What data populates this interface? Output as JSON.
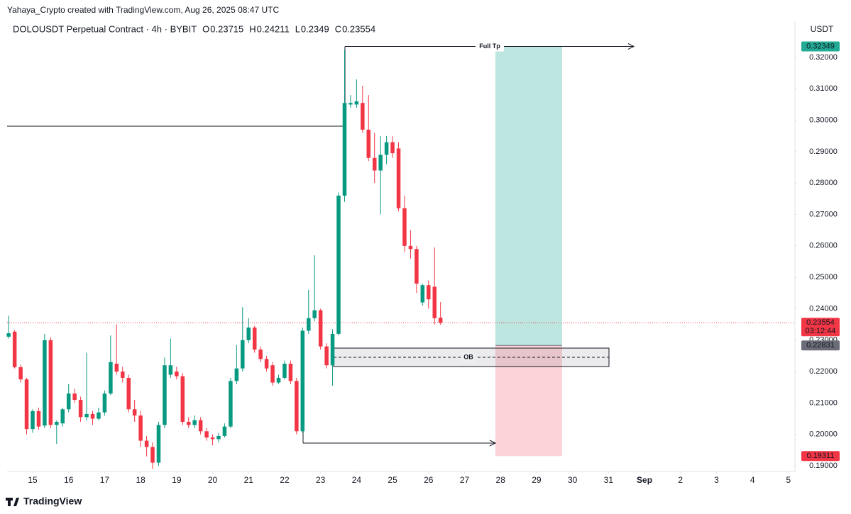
{
  "chart_data": {
    "type": "candlestick",
    "watermark": "Yahaya_Crypto created with TradingView.com, Aug 26, 2025 08:47 UTC",
    "symbol": "DOLOUSDT Perpetual Contract · 4h · BYBIT",
    "ohlc_labels": [
      "O",
      "H",
      "L",
      "C"
    ],
    "currency": "USDT",
    "countdown": "03:12:44",
    "brand": "TradingView",
    "up_color": "#089981",
    "down_color": "#f23645",
    "x": [
      14.333,
      14.5,
      14.667,
      14.833,
      15,
      15.167,
      15.333,
      15.5,
      15.667,
      15.833,
      16,
      16.167,
      16.333,
      16.5,
      16.667,
      16.833,
      17,
      17.167,
      17.333,
      17.5,
      17.667,
      17.833,
      18,
      18.167,
      18.333,
      18.5,
      18.667,
      18.833,
      19,
      19.167,
      19.333,
      19.5,
      19.667,
      19.833,
      20,
      20.167,
      20.333,
      20.5,
      20.667,
      20.833,
      21,
      21.167,
      21.333,
      21.5,
      21.667,
      21.833,
      22,
      22.167,
      22.333,
      22.5,
      22.667,
      22.833,
      23,
      23.167,
      23.333,
      23.5,
      23.667,
      23.833,
      24,
      24.167,
      24.333,
      24.5,
      24.667,
      24.833,
      25,
      25.167,
      25.333,
      25.5,
      25.667,
      25.833,
      26,
      26.167,
      26.333
    ],
    "ohlc": [
      [
        0.2311,
        0.2378,
        0.2305,
        0.2322
      ],
      [
        0.2327,
        0.2332,
        0.221,
        0.2214
      ],
      [
        0.2214,
        0.2222,
        0.2165,
        0.2175
      ],
      [
        0.2175,
        0.218,
        0.2,
        0.2017
      ],
      [
        0.2017,
        0.208,
        0.2005,
        0.2074
      ],
      [
        0.2074,
        0.2085,
        0.2015,
        0.2025
      ],
      [
        0.2028,
        0.232,
        0.202,
        0.23
      ],
      [
        0.23,
        0.231,
        0.202,
        0.203
      ],
      [
        0.203,
        0.2045,
        0.197,
        0.204
      ],
      [
        0.2035,
        0.2085,
        0.2025,
        0.208
      ],
      [
        0.208,
        0.216,
        0.207,
        0.213
      ],
      [
        0.213,
        0.2145,
        0.21,
        0.211
      ],
      [
        0.211,
        0.212,
        0.204,
        0.2055
      ],
      [
        0.2055,
        0.226,
        0.2045,
        0.2065
      ],
      [
        0.2065,
        0.2075,
        0.203,
        0.205
      ],
      [
        0.205,
        0.2085,
        0.2045,
        0.207
      ],
      [
        0.207,
        0.214,
        0.206,
        0.213
      ],
      [
        0.213,
        0.2315,
        0.2125,
        0.223
      ],
      [
        0.2225,
        0.235,
        0.219,
        0.22
      ],
      [
        0.22,
        0.2215,
        0.2165,
        0.218
      ],
      [
        0.218,
        0.219,
        0.207,
        0.208
      ],
      [
        0.208,
        0.211,
        0.204,
        0.206
      ],
      [
        0.206,
        0.2075,
        0.196,
        0.198
      ],
      [
        0.198,
        0.1995,
        0.193,
        0.196
      ],
      [
        0.196,
        0.1975,
        0.189,
        0.191
      ],
      [
        0.191,
        0.204,
        0.19,
        0.203
      ],
      [
        0.203,
        0.2245,
        0.202,
        0.222
      ],
      [
        0.219,
        0.2305,
        0.218,
        0.222
      ],
      [
        0.22,
        0.2215,
        0.2175,
        0.2185
      ],
      [
        0.2185,
        0.2195,
        0.203,
        0.204
      ],
      [
        0.204,
        0.2055,
        0.202,
        0.203
      ],
      [
        0.203,
        0.206,
        0.202,
        0.2045
      ],
      [
        0.2045,
        0.2055,
        0.2,
        0.201
      ],
      [
        0.201,
        0.202,
        0.198,
        0.199
      ],
      [
        0.199,
        0.2,
        0.1965,
        0.1985
      ],
      [
        0.1985,
        0.2005,
        0.1975,
        0.1995
      ],
      [
        0.1995,
        0.2035,
        0.199,
        0.2025
      ],
      [
        0.2025,
        0.218,
        0.202,
        0.217
      ],
      [
        0.217,
        0.2285,
        0.216,
        0.221
      ],
      [
        0.221,
        0.2405,
        0.22,
        0.23
      ],
      [
        0.23,
        0.237,
        0.229,
        0.234
      ],
      [
        0.234,
        0.2345,
        0.226,
        0.227
      ],
      [
        0.227,
        0.228,
        0.223,
        0.224
      ],
      [
        0.224,
        0.225,
        0.22,
        0.221
      ],
      [
        0.222,
        0.223,
        0.2155,
        0.2165
      ],
      [
        0.2165,
        0.219,
        0.216,
        0.218
      ],
      [
        0.218,
        0.2235,
        0.2175,
        0.2225
      ],
      [
        0.2225,
        0.2235,
        0.216,
        0.217
      ],
      [
        0.217,
        0.218,
        0.2,
        0.201
      ],
      [
        0.201,
        0.234,
        0.2005,
        0.233
      ],
      [
        0.233,
        0.246,
        0.232,
        0.237
      ],
      [
        0.237,
        0.257,
        0.236,
        0.2395
      ],
      [
        0.2395,
        0.24,
        0.227,
        0.228
      ],
      [
        0.228,
        0.229,
        0.221,
        0.222
      ],
      [
        0.222,
        0.2335,
        0.2155,
        0.232
      ],
      [
        0.232,
        0.277,
        0.2315,
        0.276
      ],
      [
        0.276,
        0.3225,
        0.274,
        0.3055
      ],
      [
        0.305,
        0.308,
        0.304,
        0.3055
      ],
      [
        0.305,
        0.313,
        0.304,
        0.306
      ],
      [
        0.3055,
        0.311,
        0.296,
        0.297
      ],
      [
        0.297,
        0.308,
        0.287,
        0.288
      ],
      [
        0.288,
        0.296,
        0.28,
        0.284
      ],
      [
        0.284,
        0.295,
        0.27,
        0.289
      ],
      [
        0.289,
        0.295,
        0.286,
        0.293
      ],
      [
        0.293,
        0.295,
        0.288,
        0.2895
      ],
      [
        0.291,
        0.293,
        0.271,
        0.272
      ],
      [
        0.272,
        0.276,
        0.258,
        0.26
      ],
      [
        0.26,
        0.265,
        0.256,
        0.259
      ],
      [
        0.259,
        0.26,
        0.245,
        0.248
      ],
      [
        0.242,
        0.248,
        0.241,
        0.2475
      ],
      [
        0.2475,
        0.249,
        0.24,
        0.243
      ],
      [
        0.247,
        0.2595,
        0.235,
        0.237
      ],
      [
        0.23715,
        0.24211,
        0.2349,
        0.23554
      ]
    ],
    "xlim": [
      14.29,
      36.18
    ],
    "xticks": [
      15,
      16,
      17,
      18,
      19,
      20,
      21,
      22,
      23,
      24,
      25,
      26,
      27,
      28,
      29,
      30,
      31,
      {
        "value": 32,
        "label": "Sep"
      },
      {
        "value": 33,
        "label": "2"
      },
      {
        "value": 34,
        "label": "3"
      },
      {
        "value": 35,
        "label": "4"
      },
      {
        "value": 36,
        "label": "5"
      }
    ],
    "ylim": [
      0.1882,
      0.3315
    ],
    "yticks": [
      {
        "value": 0.19,
        "label": "0.19000"
      },
      {
        "value": 0.2,
        "label": "0.20000"
      },
      {
        "value": 0.21,
        "label": "0.21000"
      },
      {
        "value": 0.22,
        "label": "0.22000"
      },
      {
        "value": 0.23,
        "label": "0.23000"
      },
      {
        "value": 0.24,
        "label": "0.24000"
      },
      {
        "value": 0.25,
        "label": "0.25000"
      },
      {
        "value": 0.26,
        "label": "0.26000"
      },
      {
        "value": 0.27,
        "label": "0.27000"
      },
      {
        "value": 0.28,
        "label": "0.28000"
      },
      {
        "value": 0.29,
        "label": "0.29000"
      },
      {
        "value": 0.3,
        "label": "0.30000"
      },
      {
        "value": 0.31,
        "label": "0.31000"
      },
      {
        "value": 0.32,
        "label": "0.32000"
      }
    ],
    "position": {
      "target": 0.32349,
      "entry": 0.22831,
      "stop": 0.19311,
      "target_label": "Full Tp",
      "target_color": "#22ab94",
      "stop_color": "#f23645",
      "entry_color": "#6a6d78"
    },
    "order_block_label": "OB"
  }
}
